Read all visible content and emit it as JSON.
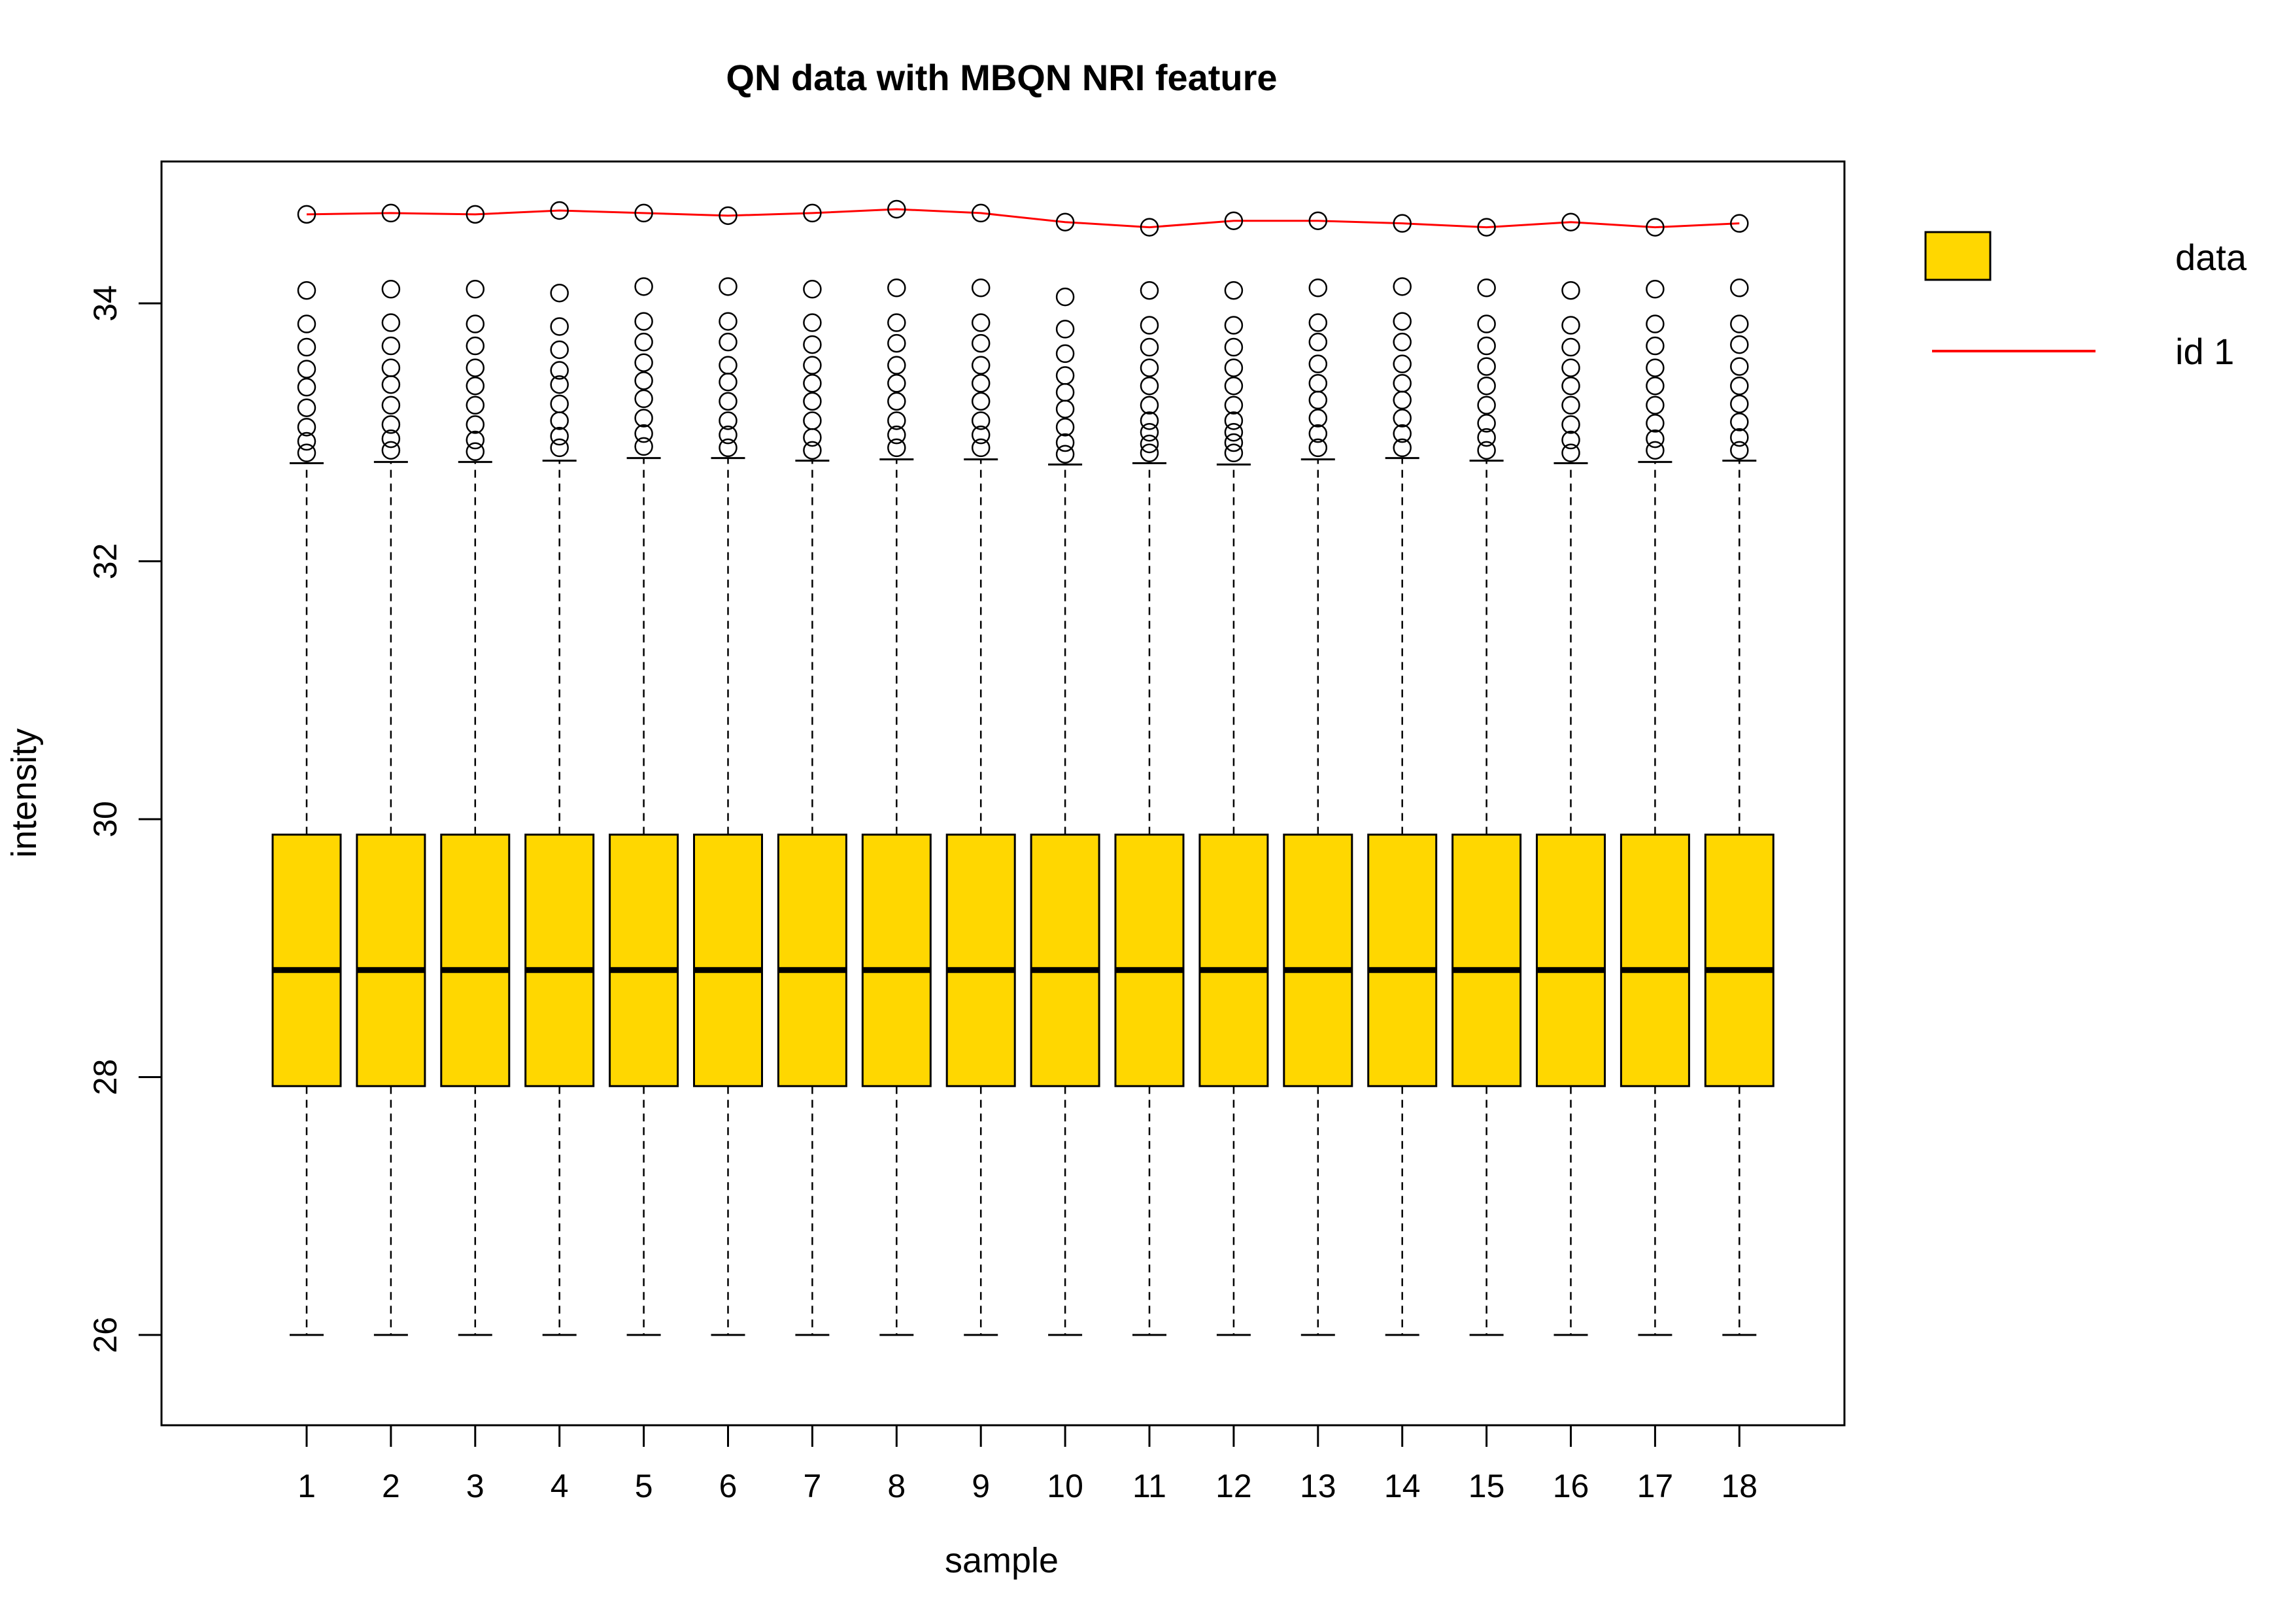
{
  "chart_data": {
    "type": "box",
    "title": "QN data with MBQN NRI feature",
    "xlabel": "sample",
    "ylabel": "intensity",
    "ylim": [
      25.3,
      35.1
    ],
    "yticks": [
      26,
      28,
      30,
      32,
      34
    ],
    "ytick_labels": [
      "26",
      "28",
      "30",
      "32",
      "34"
    ],
    "categories": [
      "1",
      "2",
      "3",
      "4",
      "5",
      "6",
      "7",
      "8",
      "9",
      "10",
      "11",
      "12",
      "13",
      "14",
      "15",
      "16",
      "17",
      "18"
    ],
    "grid": false,
    "legend": {
      "placement": "top-right outside",
      "entries": [
        {
          "label": "data",
          "kind": "box",
          "color": "#FFD700"
        },
        {
          "label": "id 1",
          "kind": "line",
          "color": "#FF0000"
        }
      ]
    },
    "box_color": "#FFD700",
    "line_color": "#FF0000",
    "boxes": [
      {
        "sample": "1",
        "whisker_low": 26.0,
        "q1": 27.93,
        "median": 28.83,
        "q3": 29.88,
        "whisker_high": 32.76,
        "outliers": [
          32.84,
          32.93,
          33.04,
          33.19,
          33.35,
          33.49,
          33.66,
          33.84,
          34.1
        ]
      },
      {
        "sample": "2",
        "whisker_low": 26.0,
        "q1": 27.93,
        "median": 28.83,
        "q3": 29.88,
        "whisker_high": 32.77,
        "outliers": [
          32.86,
          32.95,
          33.06,
          33.21,
          33.37,
          33.5,
          33.67,
          33.85,
          34.11
        ]
      },
      {
        "sample": "3",
        "whisker_low": 26.0,
        "q1": 27.93,
        "median": 28.83,
        "q3": 29.88,
        "whisker_high": 32.77,
        "outliers": [
          32.85,
          32.94,
          33.06,
          33.21,
          33.36,
          33.5,
          33.67,
          33.84,
          34.11
        ]
      },
      {
        "sample": "4",
        "whisker_low": 26.0,
        "q1": 27.93,
        "median": 28.83,
        "q3": 29.88,
        "whisker_high": 32.78,
        "outliers": [
          32.88,
          32.97,
          33.09,
          33.22,
          33.37,
          33.48,
          33.64,
          33.82,
          34.08
        ]
      },
      {
        "sample": "5",
        "whisker_low": 26.0,
        "q1": 27.93,
        "median": 28.83,
        "q3": 29.88,
        "whisker_high": 32.8,
        "outliers": [
          32.89,
          32.99,
          33.11,
          33.26,
          33.4,
          33.54,
          33.7,
          33.86,
          34.13
        ]
      },
      {
        "sample": "6",
        "whisker_low": 26.0,
        "q1": 27.93,
        "median": 28.83,
        "q3": 29.88,
        "whisker_high": 32.8,
        "outliers": [
          32.88,
          32.98,
          33.09,
          33.24,
          33.39,
          33.52,
          33.7,
          33.86,
          34.13
        ]
      },
      {
        "sample": "7",
        "whisker_low": 26.0,
        "q1": 27.93,
        "median": 28.83,
        "q3": 29.88,
        "whisker_high": 32.78,
        "outliers": [
          32.86,
          32.96,
          33.09,
          33.24,
          33.38,
          33.52,
          33.68,
          33.85,
          34.11
        ]
      },
      {
        "sample": "8",
        "whisker_low": 26.0,
        "q1": 27.93,
        "median": 28.83,
        "q3": 29.88,
        "whisker_high": 32.79,
        "outliers": [
          32.88,
          32.98,
          33.09,
          33.24,
          33.38,
          33.52,
          33.69,
          33.85,
          34.12
        ]
      },
      {
        "sample": "9",
        "whisker_low": 26.0,
        "q1": 27.93,
        "median": 28.83,
        "q3": 29.88,
        "whisker_high": 32.79,
        "outliers": [
          32.88,
          32.98,
          33.09,
          33.24,
          33.38,
          33.52,
          33.69,
          33.85,
          34.12
        ]
      },
      {
        "sample": "10",
        "whisker_low": 26.0,
        "q1": 27.93,
        "median": 28.83,
        "q3": 29.88,
        "whisker_high": 32.75,
        "outliers": [
          32.83,
          32.92,
          33.04,
          33.18,
          33.31,
          33.44,
          33.61,
          33.8,
          34.05
        ]
      },
      {
        "sample": "11",
        "whisker_low": 26.0,
        "q1": 27.93,
        "median": 28.83,
        "q3": 29.88,
        "whisker_high": 32.76,
        "outliers": [
          32.84,
          32.91,
          33.0,
          33.09,
          33.21,
          33.36,
          33.5,
          33.66,
          33.83,
          34.1
        ]
      },
      {
        "sample": "12",
        "whisker_low": 26.0,
        "q1": 27.93,
        "median": 28.83,
        "q3": 29.88,
        "whisker_high": 32.75,
        "outliers": [
          32.84,
          32.92,
          33.0,
          33.09,
          33.21,
          33.36,
          33.5,
          33.66,
          33.83,
          34.1
        ]
      },
      {
        "sample": "13",
        "whisker_low": 26.0,
        "q1": 27.93,
        "median": 28.83,
        "q3": 29.88,
        "whisker_high": 32.79,
        "outliers": [
          32.88,
          32.99,
          33.11,
          33.25,
          33.38,
          33.53,
          33.7,
          33.85,
          34.12
        ]
      },
      {
        "sample": "14",
        "whisker_low": 26.0,
        "q1": 27.93,
        "median": 28.83,
        "q3": 29.88,
        "whisker_high": 32.8,
        "outliers": [
          32.88,
          32.99,
          33.11,
          33.25,
          33.38,
          33.53,
          33.7,
          33.86,
          34.13
        ]
      },
      {
        "sample": "15",
        "whisker_low": 26.0,
        "q1": 27.93,
        "median": 28.83,
        "q3": 29.88,
        "whisker_high": 32.78,
        "outliers": [
          32.86,
          32.96,
          33.07,
          33.21,
          33.36,
          33.51,
          33.67,
          33.84,
          34.12
        ]
      },
      {
        "sample": "16",
        "whisker_low": 26.0,
        "q1": 27.93,
        "median": 28.83,
        "q3": 29.88,
        "whisker_high": 32.76,
        "outliers": [
          32.84,
          32.94,
          33.06,
          33.21,
          33.36,
          33.5,
          33.66,
          33.83,
          34.1
        ]
      },
      {
        "sample": "17",
        "whisker_low": 26.0,
        "q1": 27.93,
        "median": 28.83,
        "q3": 29.88,
        "whisker_high": 32.77,
        "outliers": [
          32.86,
          32.95,
          33.07,
          33.21,
          33.36,
          33.5,
          33.67,
          33.84,
          34.11
        ]
      },
      {
        "sample": "18",
        "whisker_low": 26.0,
        "q1": 27.93,
        "median": 28.83,
        "q3": 29.88,
        "whisker_high": 32.78,
        "outliers": [
          32.86,
          32.96,
          33.08,
          33.22,
          33.36,
          33.51,
          33.68,
          33.84,
          34.12
        ]
      }
    ],
    "series": [
      {
        "name": "id 1",
        "values": [
          34.69,
          34.7,
          34.69,
          34.72,
          34.7,
          34.68,
          34.7,
          34.73,
          34.7,
          34.63,
          34.59,
          34.64,
          34.64,
          34.62,
          34.59,
          34.63,
          34.59,
          34.62
        ]
      }
    ]
  }
}
